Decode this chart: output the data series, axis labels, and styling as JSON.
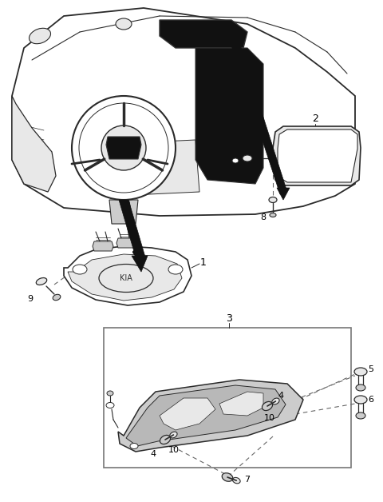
{
  "background_color": "#ffffff",
  "line_color": "#2a2a2a",
  "gray_light": "#e8e8e8",
  "gray_mid": "#cccccc",
  "gray_dark": "#999999",
  "black": "#111111",
  "dashed_color": "#666666",
  "fig_width": 4.8,
  "fig_height": 6.28,
  "dpi": 100
}
